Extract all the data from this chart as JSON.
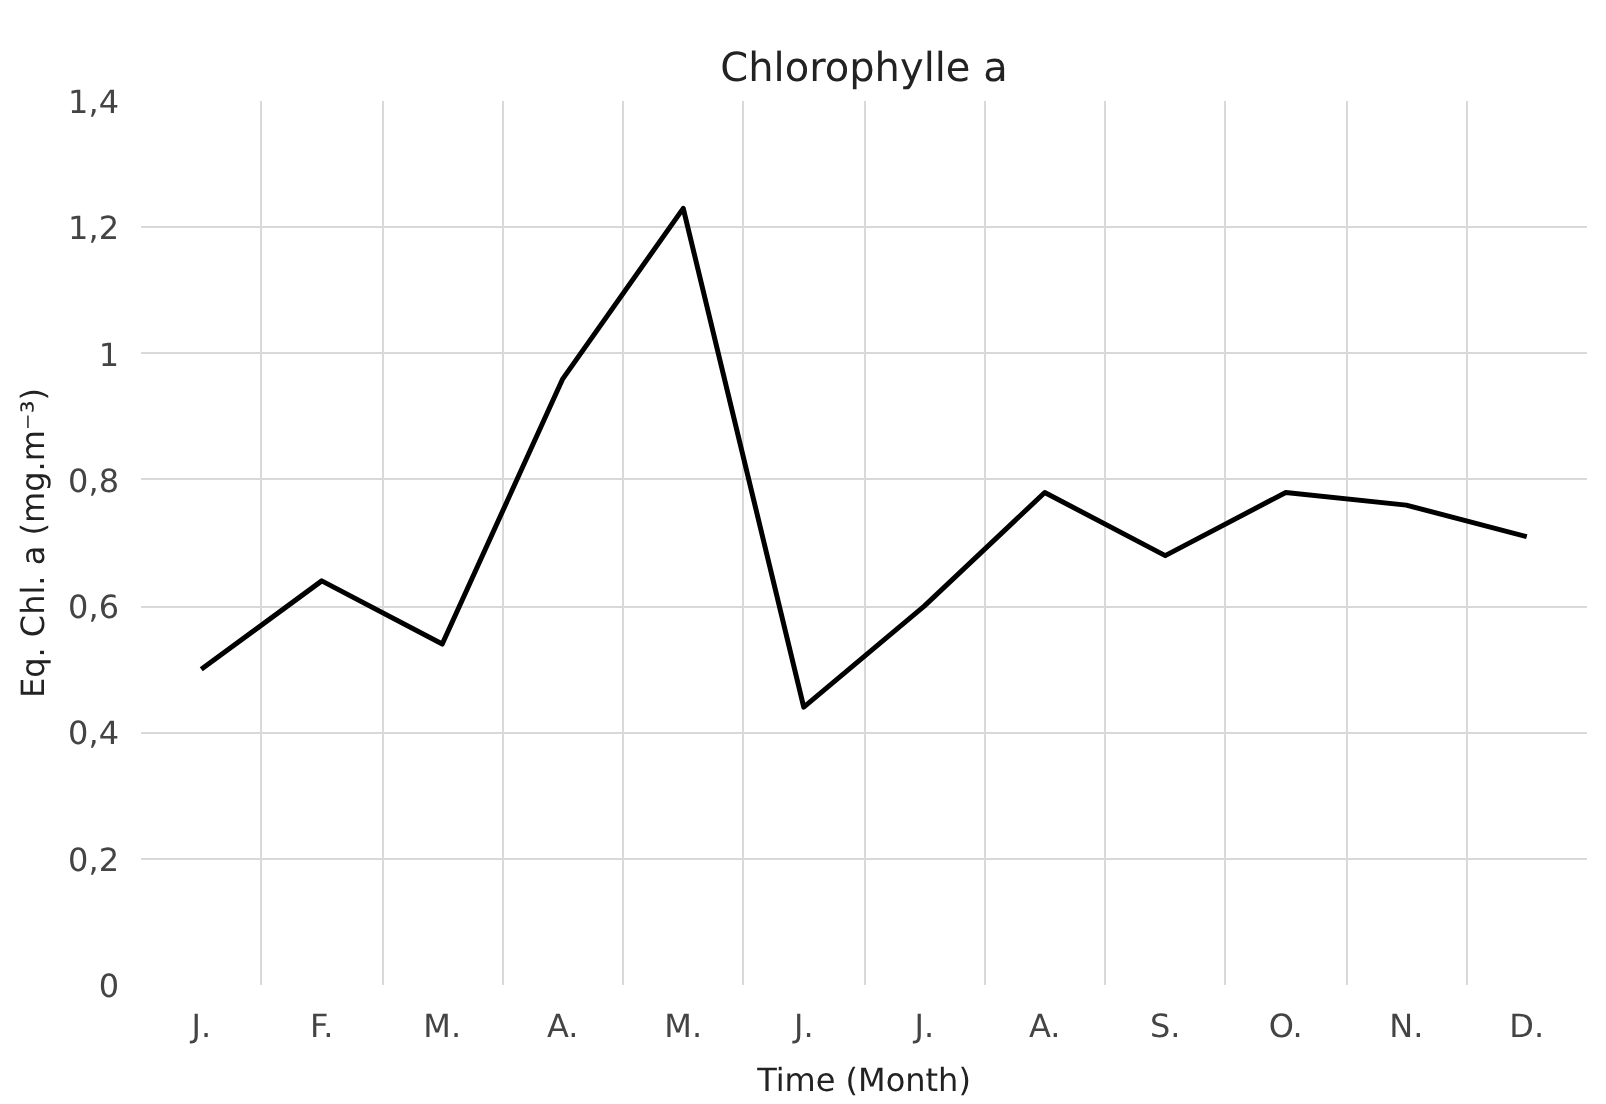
{
  "chart_data": {
    "type": "line",
    "title": "Chlorophylle a",
    "xlabel": "Time (Month)",
    "ylabel": "Eq. Chl. a (mg.m⁻³)",
    "categories": [
      "J.",
      "F.",
      "M.",
      "A.",
      "M.",
      "J.",
      "J.",
      "A.",
      "S.",
      "O.",
      "N.",
      "D."
    ],
    "series": [
      {
        "color": "#000000",
        "values": [
          0.5,
          0.64,
          0.54,
          0.96,
          1.23,
          0.44,
          0.6,
          0.78,
          0.68,
          0.78,
          0.76,
          0.71
        ]
      }
    ],
    "ylim": [
      0,
      1.4
    ],
    "yticks": [
      0,
      {
        "value": 0.2,
        "label": "0,2"
      },
      {
        "value": 0.4,
        "label": "0,4"
      },
      {
        "value": 0.6,
        "label": "0,6"
      },
      {
        "value": 0.8,
        "label": "0,8"
      },
      1,
      {
        "value": 1.2,
        "label": "1,2"
      },
      {
        "value": 1.4,
        "label": "1,4"
      }
    ],
    "grid": true,
    "marker": "none",
    "line_style": "solid"
  }
}
